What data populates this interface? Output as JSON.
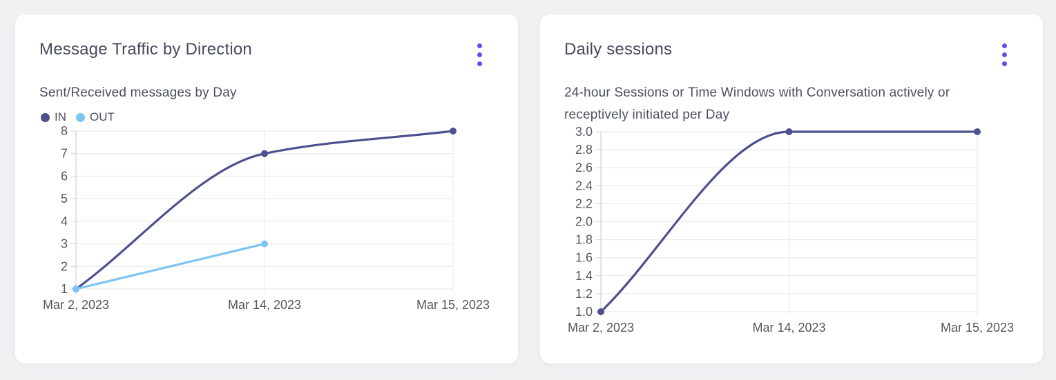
{
  "colors": {
    "accent_menu": "#5a51f2",
    "line_indigo": "#4d4f8e",
    "line_lightblue": "#7dc4f2",
    "grid": "#e7e7ea",
    "axis": "#d4d4d9",
    "card_bg": "#ffffff",
    "page_bg": "#f1f1f4"
  },
  "cards": [
    {
      "title": "Message Traffic by Direction",
      "subtitle": "Sent/Received messages by Day",
      "menu_icon": "kebab-menu-icon"
    },
    {
      "title": "Daily sessions",
      "subtitle": "24-hour Sessions or Time Windows with Conversation actively or receptively initiated per Day",
      "menu_icon": "kebab-menu-icon"
    }
  ],
  "chart_data": [
    {
      "type": "line",
      "title": "Message Traffic by Direction",
      "subtitle": "Sent/Received messages by Day",
      "categories": [
        "Mar 2, 2023",
        "Mar 14, 2023",
        "Mar 15, 2023"
      ],
      "series": [
        {
          "name": "IN",
          "color": "#4d4f8e",
          "values": [
            1,
            7,
            8
          ]
        },
        {
          "name": "OUT",
          "color": "#7dc4f2",
          "values": [
            1,
            3,
            null
          ]
        }
      ],
      "ylim": [
        1,
        8
      ],
      "yticks": [
        {
          "value": 1,
          "label": "1"
        },
        {
          "value": 2,
          "label": "2"
        },
        {
          "value": 3,
          "label": "3"
        },
        {
          "value": 4,
          "label": "4"
        },
        {
          "value": 5,
          "label": "5"
        },
        {
          "value": 6,
          "label": "6"
        },
        {
          "value": 7,
          "label": "7"
        },
        {
          "value": 8,
          "label": "8"
        }
      ],
      "grid": true,
      "legend_position": "top-left",
      "curve": "monotone"
    },
    {
      "type": "line",
      "title": "Daily sessions",
      "subtitle": "24-hour Sessions or Time Windows with Conversation actively or receptively initiated per Day",
      "categories": [
        "Mar 2, 2023",
        "Mar 14, 2023",
        "Mar 15, 2023"
      ],
      "series": [
        {
          "color": "#4d4f8e",
          "values": [
            1,
            3,
            3
          ]
        }
      ],
      "ylim": [
        1,
        3
      ],
      "yticks": [
        {
          "value": 1.0,
          "label": "1.0"
        },
        {
          "value": 1.2,
          "label": "1.2"
        },
        {
          "value": 1.4,
          "label": "1.4"
        },
        {
          "value": 1.6,
          "label": "1.6"
        },
        {
          "value": 1.8,
          "label": "1.8"
        },
        {
          "value": 2.0,
          "label": "2.0"
        },
        {
          "value": 2.2,
          "label": "2.2"
        },
        {
          "value": 2.4,
          "label": "2.4"
        },
        {
          "value": 2.6,
          "label": "2.6"
        },
        {
          "value": 2.8,
          "label": "2.8"
        },
        {
          "value": 3.0,
          "label": "3.0"
        }
      ],
      "grid": true,
      "legend_position": "none",
      "curve": "monotone"
    }
  ]
}
